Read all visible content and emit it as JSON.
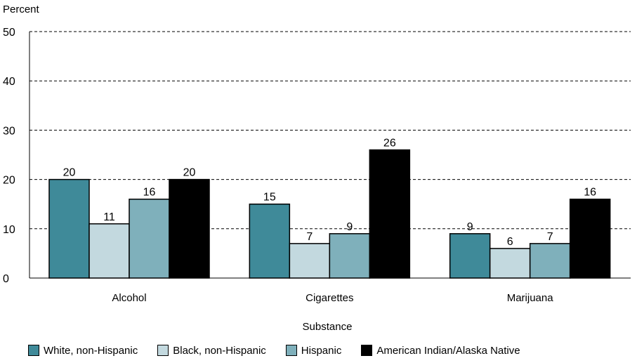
{
  "chart_data": {
    "type": "bar",
    "ylabel": "Percent",
    "xlabel": "Substance",
    "categories": [
      "Alcohol",
      "Cigarettes",
      "Marijuana"
    ],
    "ylim": [
      0,
      50
    ],
    "yticks": [
      0,
      10,
      20,
      30,
      40,
      50
    ],
    "grid": "horizontal dashed",
    "legend_position": "bottom",
    "series": [
      {
        "name": "White, non-Hispanic",
        "values": [
          20,
          15,
          9
        ],
        "color": "#3f8a99"
      },
      {
        "name": "Black, non-Hispanic",
        "values": [
          11,
          7,
          6
        ],
        "color": "#c3d9df"
      },
      {
        "name": "Hispanic",
        "values": [
          16,
          9,
          7
        ],
        "color": "#7fb0bb"
      },
      {
        "name": "American Indian/Alaska Native",
        "values": [
          20,
          26,
          16
        ],
        "color": "#000000"
      }
    ]
  }
}
